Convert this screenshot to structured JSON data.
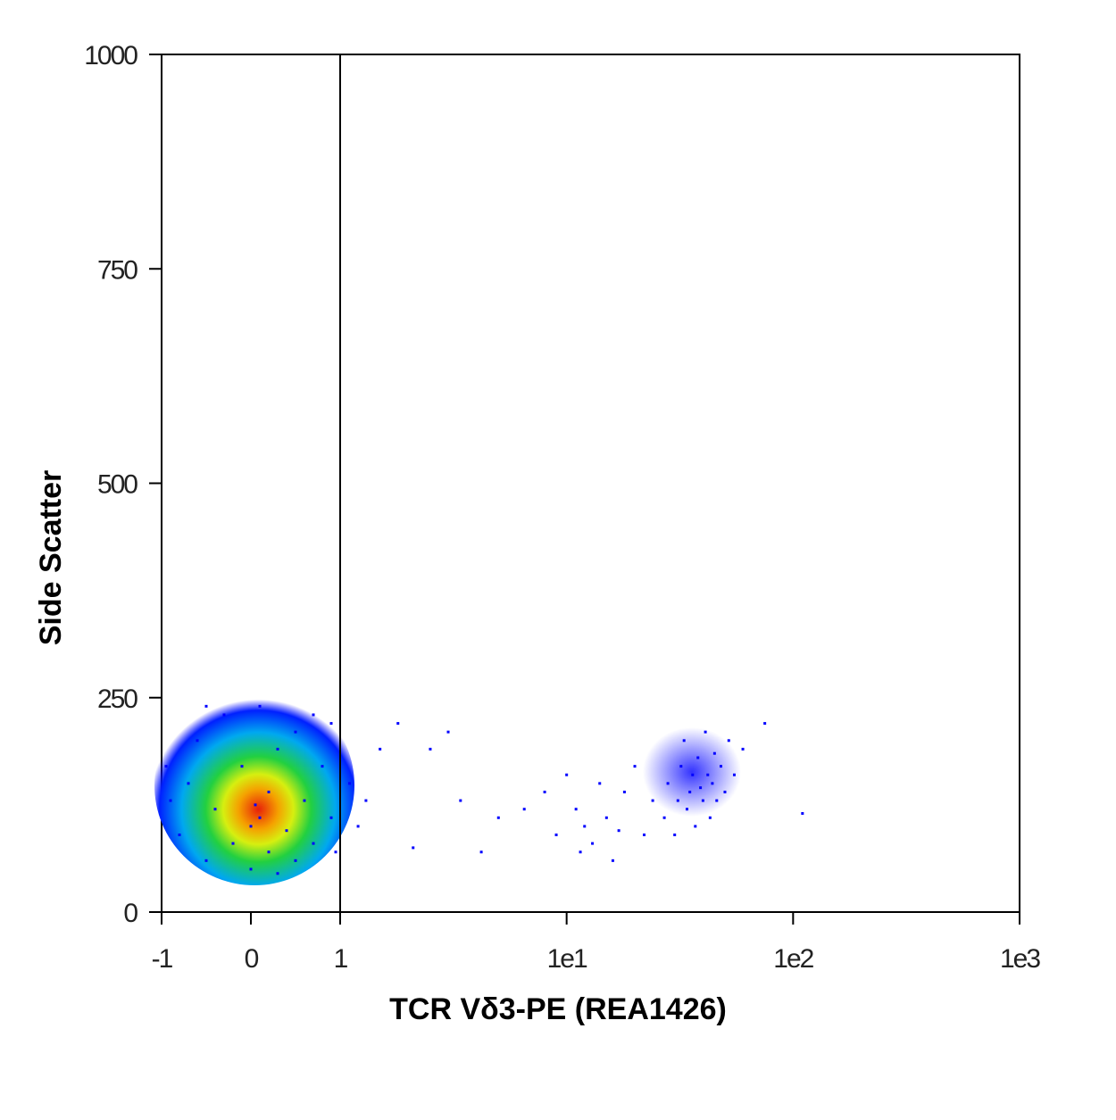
{
  "chart_data": {
    "type": "scatter",
    "x_label": "TCR Vδ3-PE (REA1426)",
    "y_label": "Side Scatter",
    "x_scale": "biexponential",
    "xlim": [
      -1,
      1000
    ],
    "xticks": [
      -1,
      0,
      1,
      {
        "value": 10,
        "label": "1e1"
      },
      {
        "value": 100,
        "label": "1e2"
      },
      {
        "value": 1000,
        "label": "1e3"
      }
    ],
    "ylim": [
      0,
      1000
    ],
    "yticks": [
      0,
      250,
      500,
      750,
      1000
    ],
    "gate_x": 1,
    "color": "#0000ff",
    "x": [
      -0.8,
      -0.7,
      -0.6,
      -0.5,
      -0.4,
      -0.3,
      -0.2,
      -0.1,
      0,
      0,
      0.1,
      0.1,
      0.2,
      0.2,
      0.3,
      0.4,
      0.5,
      0.5,
      0.6,
      0.7,
      0.8,
      0.9,
      0.9,
      -0.9,
      0.3,
      -0.5,
      0.7,
      0.95,
      -0.95,
      0.05,
      1.1,
      1.2,
      1.3,
      1.5,
      1.8,
      2.1,
      2.5,
      3,
      3.4,
      4.2,
      5,
      6.5,
      8,
      9,
      10,
      11,
      11.5,
      12,
      13,
      14,
      15,
      16,
      17,
      18,
      20,
      22,
      24,
      27,
      28,
      30,
      31,
      32,
      33,
      34,
      35,
      36,
      37,
      38,
      39,
      40,
      41,
      42,
      43,
      44,
      45,
      46,
      48,
      50,
      52,
      55,
      60,
      75,
      110
    ],
    "y": [
      90,
      150,
      200,
      60,
      120,
      230,
      80,
      170,
      100,
      50,
      110,
      240,
      140,
      70,
      190,
      95,
      60,
      210,
      130,
      80,
      170,
      110,
      220,
      130,
      45,
      240,
      230,
      70,
      170,
      125,
      150,
      100,
      130,
      190,
      220,
      75,
      190,
      210,
      130,
      70,
      110,
      120,
      140,
      90,
      160,
      120,
      70,
      100,
      80,
      150,
      110,
      60,
      95,
      140,
      170,
      90,
      130,
      110,
      150,
      90,
      130,
      170,
      200,
      120,
      140,
      160,
      100,
      180,
      145,
      130,
      210,
      160,
      110,
      150,
      185,
      130,
      170,
      140,
      200,
      160,
      190,
      220,
      115
    ]
  }
}
